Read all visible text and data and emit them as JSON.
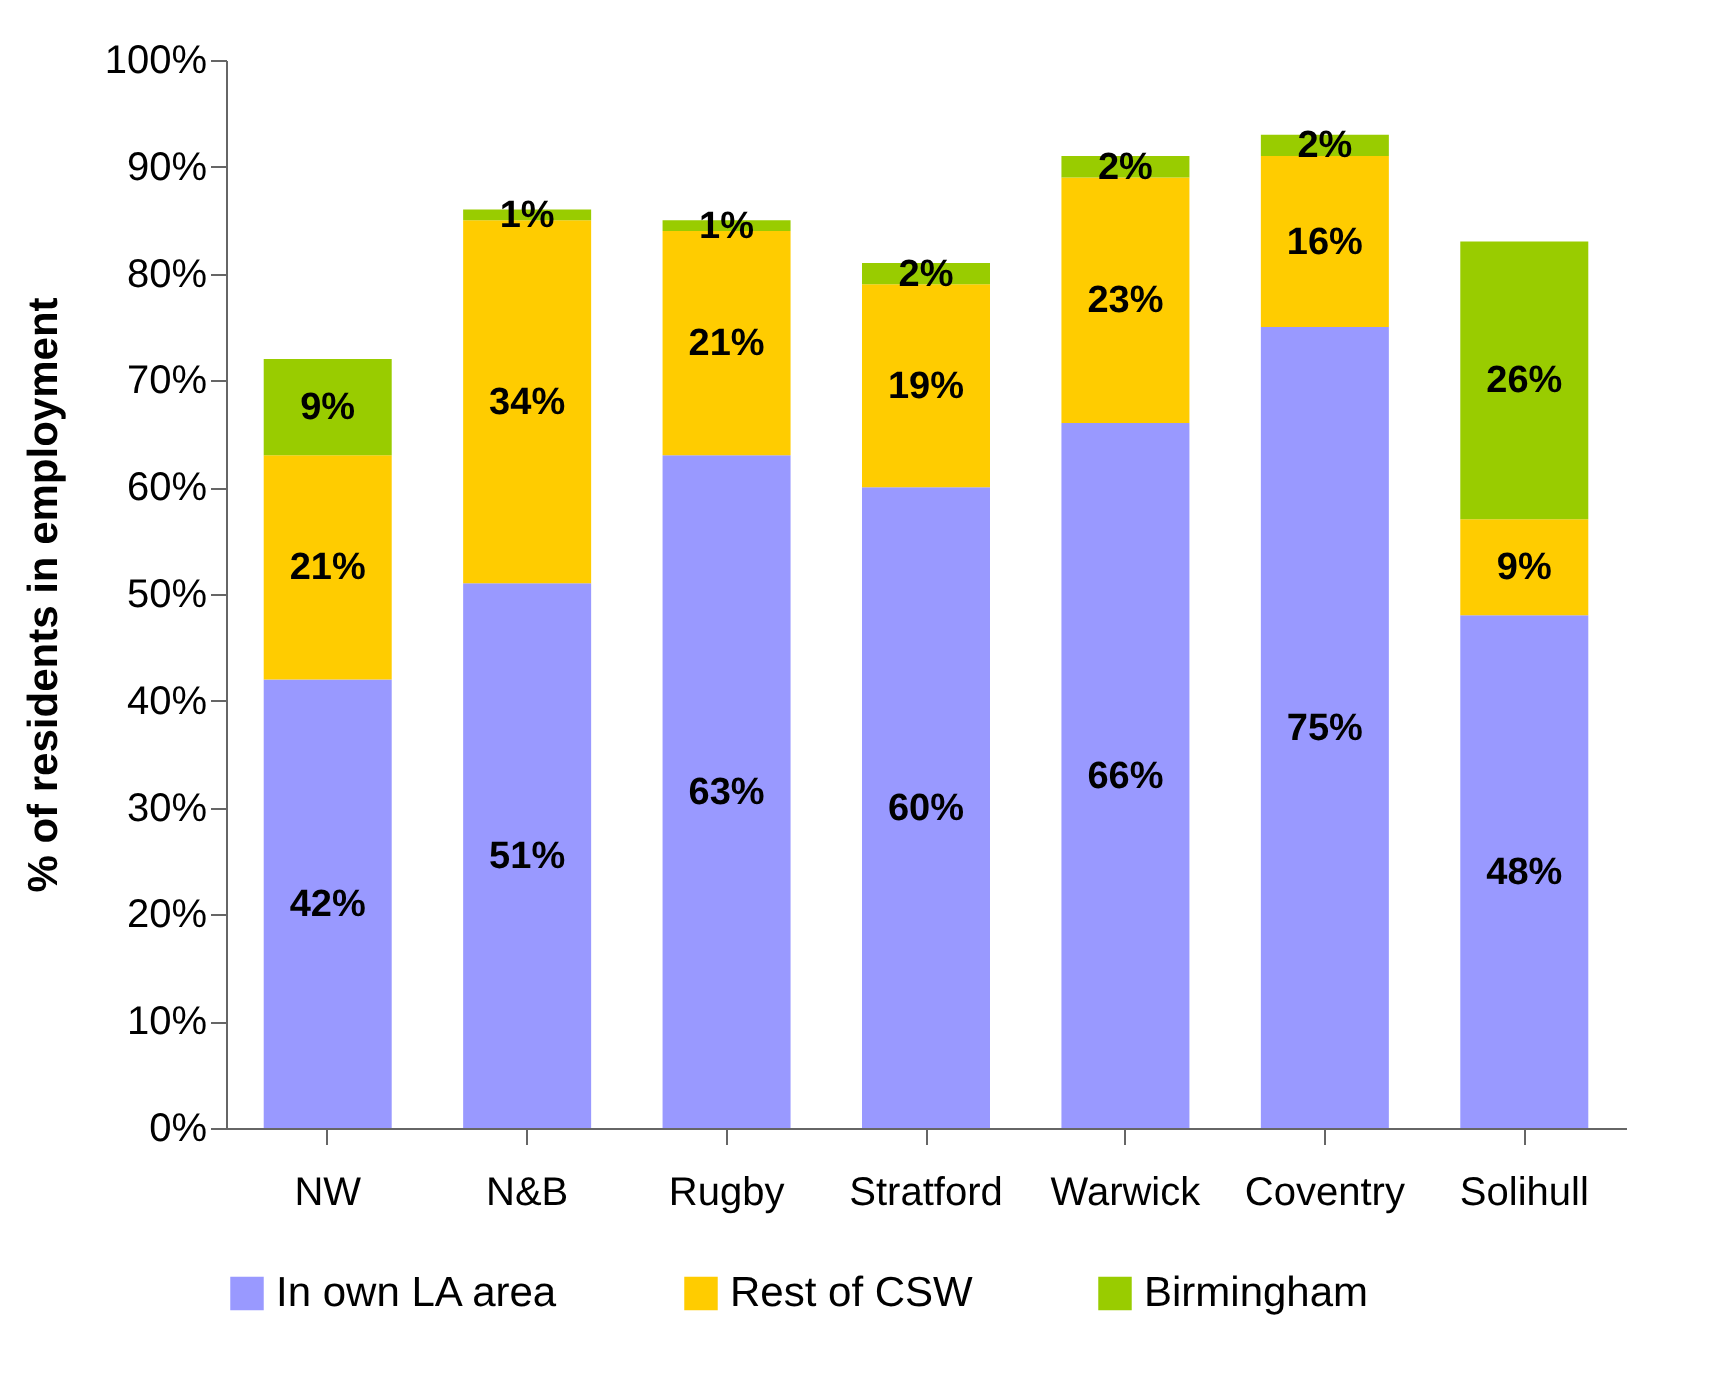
{
  "chart_data": {
    "type": "bar",
    "stacked": true,
    "ylabel": "% of residents in employment",
    "categories": [
      "NW",
      "N&B",
      "Rugby",
      "Stratford",
      "Warwick",
      "Coventry",
      "Solihull"
    ],
    "series": [
      {
        "name": "In own LA area",
        "color": "#9999ff",
        "values": [
          42,
          51,
          63,
          60,
          66,
          75,
          48
        ],
        "value_labels": [
          "42%",
          "51%",
          "63%",
          "60%",
          "66%",
          "75%",
          "48%"
        ]
      },
      {
        "name": "Rest of CSW",
        "color": "#ffcc00",
        "values": [
          21,
          34,
          21,
          19,
          23,
          16,
          9
        ],
        "value_labels": [
          "21%",
          "34%",
          "21%",
          "19%",
          "23%",
          "16%",
          "9%"
        ]
      },
      {
        "name": "Birmingham",
        "color": "#99cc00",
        "values": [
          9,
          1,
          1,
          2,
          2,
          2,
          26
        ],
        "value_labels": [
          "9%",
          "1%",
          "1%",
          "2%",
          "2%",
          "2%",
          "26%"
        ]
      }
    ],
    "ylim": [
      0,
      100
    ],
    "yticks": [
      {
        "value": 0,
        "label": "0%"
      },
      {
        "value": 10,
        "label": "10%"
      },
      {
        "value": 20,
        "label": "20%"
      },
      {
        "value": 30,
        "label": "30%"
      },
      {
        "value": 40,
        "label": "40%"
      },
      {
        "value": 50,
        "label": "50%"
      },
      {
        "value": 60,
        "label": "60%"
      },
      {
        "value": 70,
        "label": "70%"
      },
      {
        "value": 80,
        "label": "80%"
      },
      {
        "value": 90,
        "label": "90%"
      },
      {
        "value": 100,
        "label": "100%"
      }
    ],
    "legend": "bottom"
  }
}
